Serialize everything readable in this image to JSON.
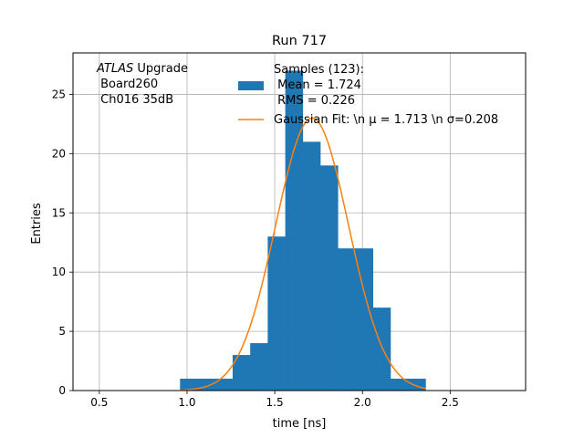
{
  "chart_data": {
    "type": "bar",
    "title": "Run 717",
    "xlabel": "time [ns]",
    "ylabel": "Entries",
    "xlim": [
      0.35,
      2.93
    ],
    "ylim": [
      0,
      28.5
    ],
    "grid": true,
    "xticks": [
      0.5,
      1.0,
      1.5,
      2.0,
      2.5
    ],
    "xtick_labels": [
      "0.5",
      "1.0",
      "1.5",
      "2.0",
      "2.5"
    ],
    "yticks": [
      0,
      5,
      10,
      15,
      20,
      25
    ],
    "ytick_labels": [
      "0",
      "5",
      "10",
      "15",
      "20",
      "25"
    ],
    "histogram": {
      "bin_edges": [
        0.96,
        1.06,
        1.16,
        1.26,
        1.36,
        1.46,
        1.56,
        1.66,
        1.76,
        1.86,
        1.96,
        2.06,
        2.16,
        2.26,
        2.36
      ],
      "counts": [
        1,
        1,
        1,
        3,
        4,
        13,
        27,
        21,
        19,
        12,
        12,
        7,
        1,
        1
      ],
      "color": "#1f77b4"
    },
    "fit": {
      "mu": 1.713,
      "sigma": 0.208,
      "amplitude": 23.0,
      "x_range": [
        0.96,
        2.36
      ],
      "color": "#ff7f0e"
    },
    "legend": {
      "placement": "top-right",
      "samples_lines": [
        "Samples (123):",
        " Mean = 1.724",
        " RMS = 0.226"
      ],
      "fit_label": "Gaussian Fit: \\n $\\mu$ = 1.713 \\n $\\sigma$=0.208",
      "fit_label_display": "Gaussian Fit: \\n μ = 1.713 \\n σ=0.208"
    },
    "annotation": {
      "italic_word": "ATLAS",
      "rest_line1": " Upgrade",
      "line2": " Board260",
      "line3": " Ch016 35dB"
    }
  }
}
